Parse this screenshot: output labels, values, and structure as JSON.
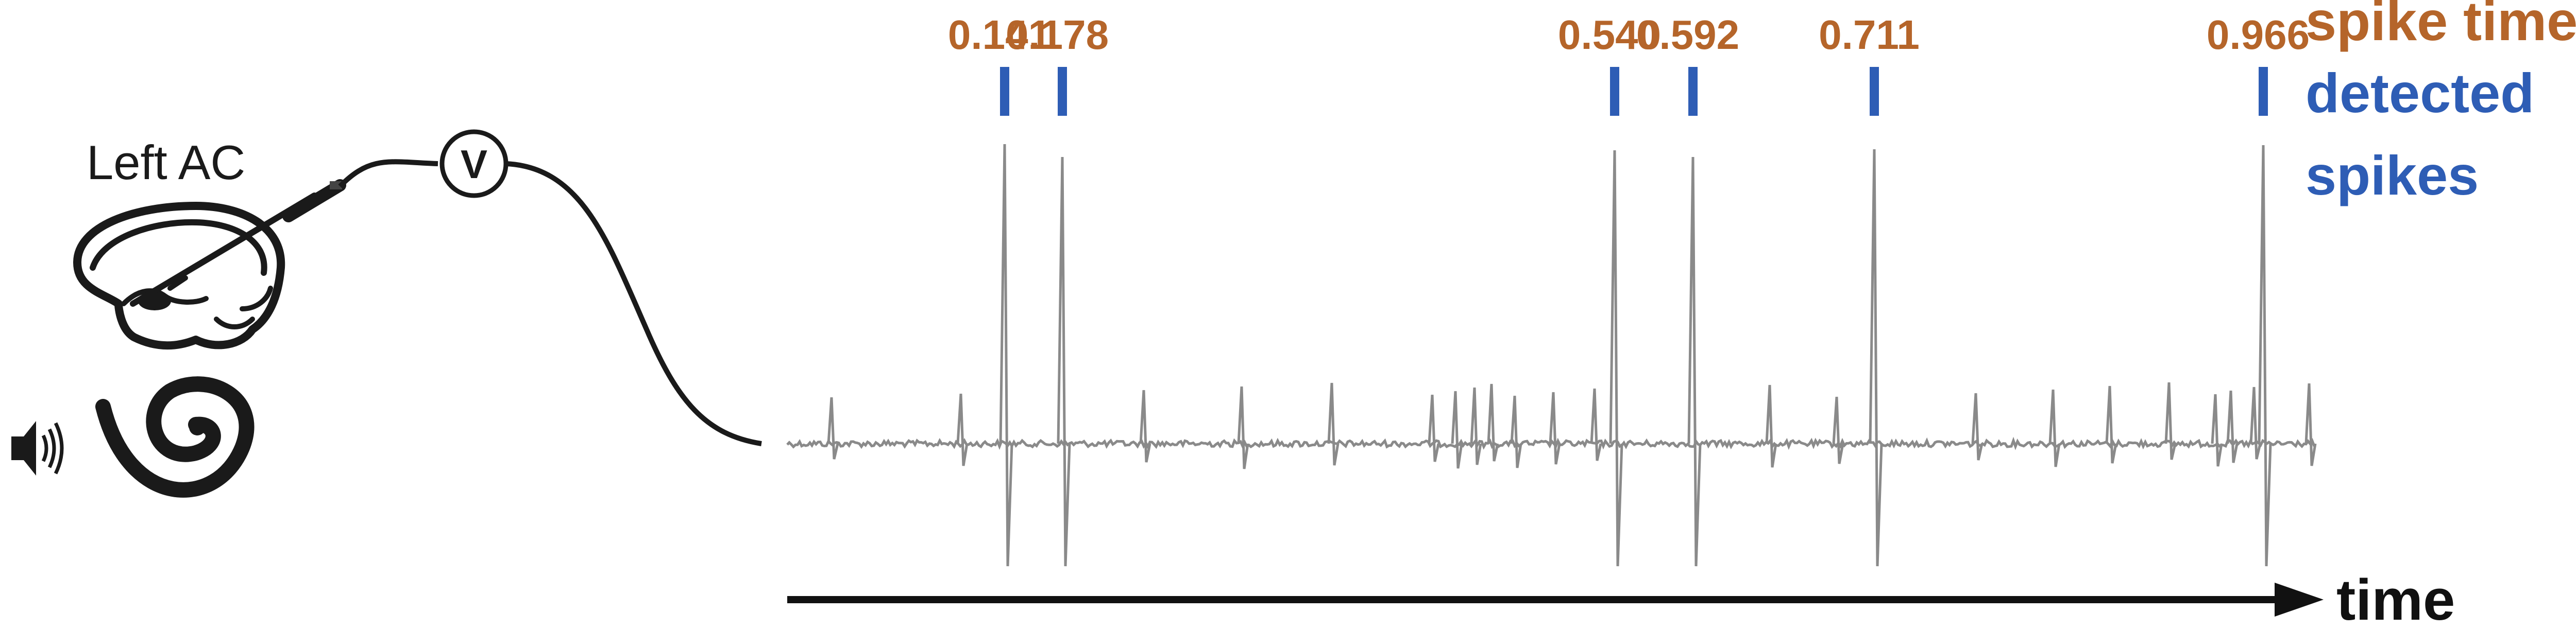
{
  "colors": {
    "spike_time": "#b5652a",
    "detected": "#2e5db5",
    "trace": "#8a8a8a",
    "ink": "#1a1a1a"
  },
  "labels": {
    "brain_region": "Left AC",
    "voltmeter": "V",
    "legend_spike_times": "spike times",
    "legend_detected": "detected",
    "legend_spikes": "spikes",
    "time_axis": "time"
  },
  "spikes": {
    "times": [
      "0.141",
      "0.178",
      "0.540",
      "0.592",
      "0.711",
      "0.966"
    ],
    "small_events_count": 22
  },
  "icons": [
    "speaker-icon",
    "cochlea-icon",
    "brain-icon",
    "electrode-icon",
    "voltmeter-icon"
  ]
}
